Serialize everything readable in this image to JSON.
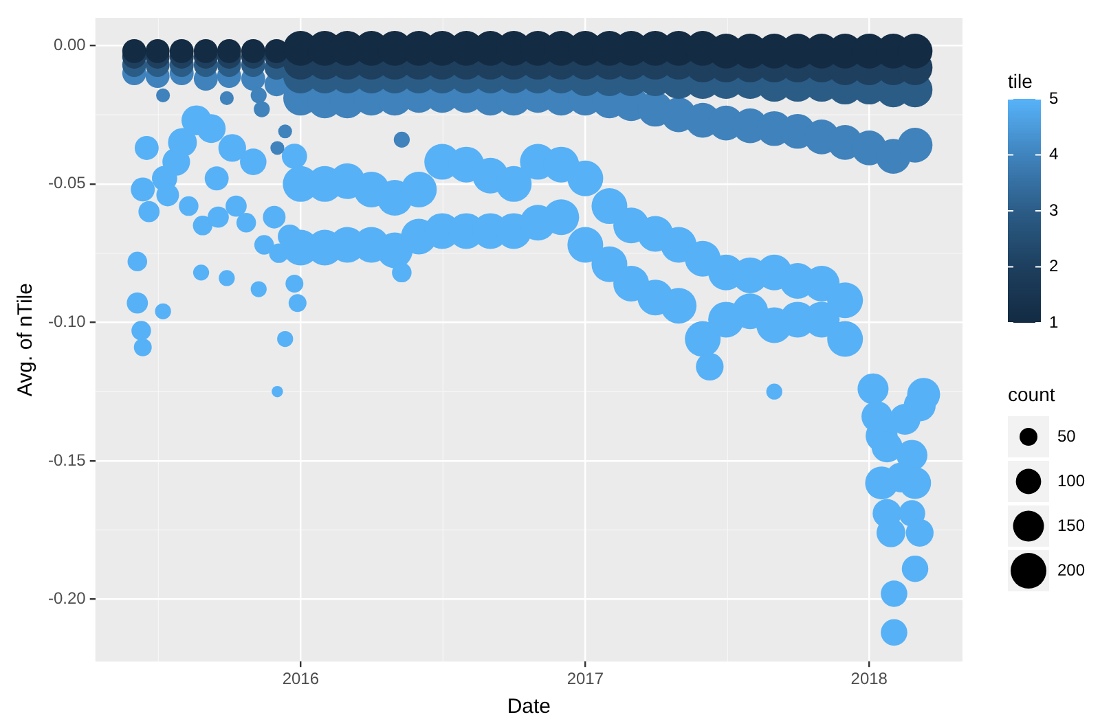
{
  "chart_data": {
    "type": "bubble",
    "xlabel": "Date",
    "ylabel": "Avg. of nTile",
    "clabel": "tile",
    "legend_title": "count",
    "xlim": [
      "2015-04-12",
      "2018-05-01"
    ],
    "xticks": [
      "2016",
      "2017",
      "2018"
    ],
    "ylim": [
      -0.2225,
      0.01
    ],
    "yticks": [
      {
        "value": -0.2,
        "label": "-0.20"
      },
      {
        "value": -0.15,
        "label": "-0.15"
      },
      {
        "value": -0.1,
        "label": "-0.10"
      },
      {
        "value": -0.05,
        "label": "-0.05"
      },
      {
        "value": 0,
        "label": "0.00"
      }
    ],
    "grid": true,
    "clim": [
      1,
      5
    ],
    "cticks": [
      1,
      2,
      3,
      4,
      5
    ],
    "size_legend": [
      50,
      100,
      150,
      200
    ],
    "series": [
      {
        "color": "#132b43",
        "x": [
          "2015-06",
          "2015-07",
          "2015-08",
          "2015-09",
          "2015-10",
          "2015-11",
          "2015-12",
          "2016-01",
          "2016-02",
          "2016-03",
          "2016-04",
          "2016-05",
          "2016-06",
          "2016-07",
          "2016-08",
          "2016-09",
          "2016-10",
          "2016-11",
          "2016-12",
          "2017-01",
          "2017-02",
          "2017-03",
          "2017-04",
          "2017-05",
          "2017-06",
          "2017-07",
          "2017-08",
          "2017-09",
          "2017-10",
          "2017-11",
          "2017-12",
          "2018-01",
          "2018-02",
          "2018-03"
        ],
        "values": [
          -0.002,
          -0.002,
          -0.002,
          -0.002,
          -0.002,
          -0.002,
          -0.002,
          -0.001,
          -0.001,
          -0.001,
          -0.001,
          -0.001,
          -0.001,
          -0.001,
          -0.001,
          -0.001,
          -0.001,
          -0.001,
          -0.001,
          -0.001,
          -0.001,
          -0.001,
          -0.001,
          -0.001,
          -0.001,
          -0.002,
          -0.002,
          -0.002,
          -0.002,
          -0.002,
          -0.002,
          -0.002,
          -0.002,
          -0.002
        ],
        "sizes": [
          90,
          90,
          90,
          90,
          90,
          90,
          90,
          190,
          190,
          190,
          190,
          190,
          190,
          190,
          190,
          190,
          190,
          190,
          190,
          190,
          190,
          190,
          190,
          190,
          190,
          190,
          190,
          190,
          190,
          190,
          190,
          190,
          190,
          190
        ]
      },
      {
        "color": "#1e3f5e",
        "x": [
          "2015-06",
          "2015-07",
          "2015-08",
          "2015-09",
          "2015-10",
          "2015-11",
          "2015-12",
          "2016-01",
          "2016-02",
          "2016-03",
          "2016-04",
          "2016-05",
          "2016-06",
          "2016-07",
          "2016-08",
          "2016-09",
          "2016-10",
          "2016-11",
          "2016-12",
          "2017-01",
          "2017-02",
          "2017-03",
          "2017-04",
          "2017-05",
          "2017-06",
          "2017-07",
          "2017-08",
          "2017-09",
          "2017-10",
          "2017-11",
          "2017-12",
          "2018-01",
          "2018-02",
          "2018-03"
        ],
        "values": [
          -0.004,
          -0.004,
          -0.004,
          -0.004,
          -0.004,
          -0.004,
          -0.004,
          -0.006,
          -0.006,
          -0.006,
          -0.006,
          -0.006,
          -0.006,
          -0.006,
          -0.006,
          -0.006,
          -0.006,
          -0.006,
          -0.006,
          -0.006,
          -0.006,
          -0.006,
          -0.006,
          -0.006,
          -0.007,
          -0.007,
          -0.007,
          -0.007,
          -0.007,
          -0.007,
          -0.008,
          -0.008,
          -0.008,
          -0.008
        ],
        "sizes": [
          90,
          90,
          90,
          90,
          90,
          90,
          90,
          190,
          190,
          190,
          190,
          190,
          190,
          190,
          190,
          190,
          190,
          190,
          190,
          190,
          190,
          190,
          190,
          190,
          190,
          190,
          190,
          190,
          190,
          190,
          190,
          190,
          190,
          190
        ]
      },
      {
        "color": "#2b5c86",
        "x": [
          "2015-06",
          "2015-07",
          "2015-08",
          "2015-09",
          "2015-10",
          "2015-11",
          "2015-12",
          "2016-01",
          "2016-02",
          "2016-03",
          "2016-04",
          "2016-05",
          "2016-06",
          "2016-07",
          "2016-08",
          "2016-09",
          "2016-10",
          "2016-11",
          "2016-12",
          "2017-01",
          "2017-02",
          "2017-03",
          "2017-04",
          "2017-05",
          "2017-06",
          "2017-07",
          "2017-08",
          "2017-09",
          "2017-10",
          "2017-11",
          "2017-12",
          "2018-01",
          "2018-02",
          "2018-03"
        ],
        "values": [
          -0.007,
          -0.007,
          -0.007,
          -0.007,
          -0.007,
          -0.007,
          -0.008,
          -0.011,
          -0.011,
          -0.011,
          -0.011,
          -0.011,
          -0.011,
          -0.011,
          -0.011,
          -0.011,
          -0.011,
          -0.011,
          -0.011,
          -0.012,
          -0.012,
          -0.012,
          -0.012,
          -0.013,
          -0.013,
          -0.013,
          -0.013,
          -0.014,
          -0.014,
          -0.014,
          -0.015,
          -0.015,
          -0.016,
          -0.016
        ],
        "sizes": [
          90,
          90,
          90,
          90,
          90,
          90,
          90,
          190,
          190,
          190,
          190,
          190,
          190,
          190,
          190,
          190,
          190,
          190,
          190,
          190,
          190,
          190,
          190,
          190,
          190,
          190,
          190,
          190,
          190,
          190,
          190,
          190,
          190,
          190
        ]
      },
      {
        "color": "#3f82bc",
        "x": [
          "2015-06",
          "2015-07",
          "2015-07-08",
          "2015-08",
          "2015-09",
          "2015-09-28",
          "2015-10",
          "2015-11",
          "2015-11-08",
          "2015-11-12",
          "2015-12",
          "2015-12-02",
          "2015-12-12",
          "2016-01",
          "2016-02",
          "2016-03",
          "2016-04",
          "2016-05",
          "2016-05-10",
          "2016-06",
          "2016-07",
          "2016-08",
          "2016-09",
          "2016-10",
          "2016-11",
          "2016-12",
          "2017-01",
          "2017-02",
          "2017-03",
          "2017-04",
          "2017-05",
          "2017-06",
          "2017-07",
          "2017-08",
          "2017-09",
          "2017-10",
          "2017-11",
          "2017-12",
          "2018-01",
          "2018-02",
          "2018-03"
        ],
        "values": [
          -0.01,
          -0.011,
          -0.018,
          -0.01,
          -0.012,
          -0.019,
          -0.011,
          -0.012,
          -0.018,
          -0.023,
          -0.014,
          -0.037,
          -0.031,
          -0.019,
          -0.02,
          -0.02,
          -0.019,
          -0.019,
          -0.034,
          -0.018,
          -0.018,
          -0.018,
          -0.019,
          -0.019,
          -0.018,
          -0.019,
          -0.019,
          -0.02,
          -0.021,
          -0.023,
          -0.025,
          -0.027,
          -0.028,
          -0.029,
          -0.03,
          -0.031,
          -0.033,
          -0.035,
          -0.037,
          -0.04,
          -0.036
        ],
        "sizes": [
          90,
          90,
          30,
          90,
          90,
          30,
          90,
          90,
          40,
          40,
          90,
          30,
          30,
          190,
          190,
          190,
          190,
          190,
          40,
          190,
          190,
          190,
          190,
          190,
          190,
          190,
          190,
          190,
          190,
          190,
          190,
          190,
          190,
          190,
          190,
          190,
          190,
          190,
          190,
          190,
          190
        ]
      },
      {
        "color": "#56b1f7",
        "x": [
          "2015-06-05",
          "2015-06-05",
          "2015-06-10",
          "2015-06-12",
          "2015-06-12",
          "2015-06-17",
          "2015-06-20",
          "2015-07-08",
          "2015-07-10",
          "2015-07-14",
          "2015-07-25",
          "2015-08-02",
          "2015-08-10",
          "2015-08-20",
          "2015-08-26",
          "2015-08-28",
          "2015-09-08",
          "2015-09-15",
          "2015-09-17",
          "2015-09-28",
          "2015-10-05",
          "2015-10-10",
          "2015-10-23",
          "2015-11-01",
          "2015-11-08",
          "2015-11-15",
          "2015-11-28",
          "2015-12-02",
          "2015-12-04",
          "2015-12-12",
          "2015-12-18",
          "2015-12-24",
          "2015-12-24",
          "2015-12-28",
          "2016-01",
          "2016-01",
          "2016-02",
          "2016-02",
          "2016-03",
          "2016-03",
          "2016-04",
          "2016-04",
          "2016-05",
          "2016-05",
          "2016-05-10",
          "2016-06",
          "2016-06",
          "2016-07",
          "2016-07",
          "2016-08",
          "2016-08",
          "2016-09",
          "2016-09",
          "2016-10",
          "2016-10",
          "2016-11",
          "2016-11",
          "2016-12",
          "2016-12",
          "2017-01",
          "2017-01",
          "2017-02",
          "2017-02",
          "2017-03",
          "2017-03",
          "2017-04",
          "2017-04",
          "2017-05",
          "2017-05",
          "2017-06",
          "2017-06",
          "2017-06-10",
          "2017-07",
          "2017-07",
          "2017-08",
          "2017-08",
          "2017-09",
          "2017-09",
          "2017-09-01",
          "2017-10",
          "2017-10",
          "2017-11",
          "2017-11",
          "2017-12",
          "2017-12",
          "2018-01-06",
          "2018-01-11",
          "2018-01-17",
          "2018-01-17",
          "2018-01-24",
          "2018-01-24",
          "2018-01-29",
          "2018-02-02",
          "2018-02-02",
          "2018-02-11",
          "2018-02-16",
          "2018-02-25",
          "2018-02-25",
          "2018-03-01",
          "2018-03-01",
          "2018-03-07",
          "2018-03-07",
          "2018-03-12"
        ],
        "values": [
          -0.078,
          -0.093,
          -0.103,
          -0.109,
          -0.052,
          -0.037,
          -0.06,
          -0.096,
          -0.048,
          -0.054,
          -0.042,
          -0.035,
          -0.058,
          -0.027,
          -0.082,
          -0.065,
          -0.03,
          -0.048,
          -0.062,
          -0.084,
          -0.037,
          -0.058,
          -0.064,
          -0.042,
          -0.088,
          -0.072,
          -0.062,
          -0.125,
          -0.075,
          -0.106,
          -0.069,
          -0.04,
          -0.086,
          -0.093,
          -0.05,
          -0.073,
          -0.05,
          -0.073,
          -0.049,
          -0.072,
          -0.052,
          -0.072,
          -0.055,
          -0.074,
          -0.082,
          -0.052,
          -0.069,
          -0.042,
          -0.067,
          -0.043,
          -0.067,
          -0.047,
          -0.067,
          -0.05,
          -0.067,
          -0.042,
          -0.064,
          -0.043,
          -0.062,
          -0.048,
          -0.072,
          -0.058,
          -0.079,
          -0.065,
          -0.086,
          -0.068,
          -0.091,
          -0.072,
          -0.094,
          -0.077,
          -0.106,
          -0.116,
          -0.082,
          -0.099,
          -0.083,
          -0.096,
          -0.082,
          -0.101,
          -0.125,
          -0.085,
          -0.099,
          -0.086,
          -0.099,
          -0.092,
          -0.106,
          -0.124,
          -0.134,
          -0.141,
          -0.158,
          -0.145,
          -0.169,
          -0.176,
          -0.198,
          -0.212,
          -0.156,
          -0.135,
          -0.148,
          -0.169,
          -0.158,
          -0.189,
          -0.176,
          -0.13,
          -0.126
        ],
        "sizes": [
          60,
          70,
          60,
          50,
          90,
          90,
          70,
          40,
          100,
          80,
          120,
          130,
          60,
          140,
          40,
          60,
          130,
          90,
          70,
          40,
          120,
          70,
          60,
          110,
          40,
          60,
          80,
          20,
          60,
          40,
          90,
          100,
          50,
          50,
          200,
          200,
          200,
          200,
          200,
          200,
          200,
          200,
          200,
          200,
          60,
          200,
          200,
          200,
          200,
          200,
          200,
          200,
          200,
          200,
          200,
          200,
          200,
          200,
          200,
          200,
          200,
          200,
          200,
          200,
          200,
          200,
          200,
          200,
          200,
          200,
          200,
          120,
          200,
          200,
          200,
          200,
          200,
          200,
          40,
          200,
          200,
          200,
          200,
          200,
          200,
          150,
          150,
          160,
          170,
          150,
          130,
          130,
          110,
          110,
          140,
          150,
          150,
          110,
          160,
          110,
          120,
          160,
          170
        ]
      }
    ]
  }
}
